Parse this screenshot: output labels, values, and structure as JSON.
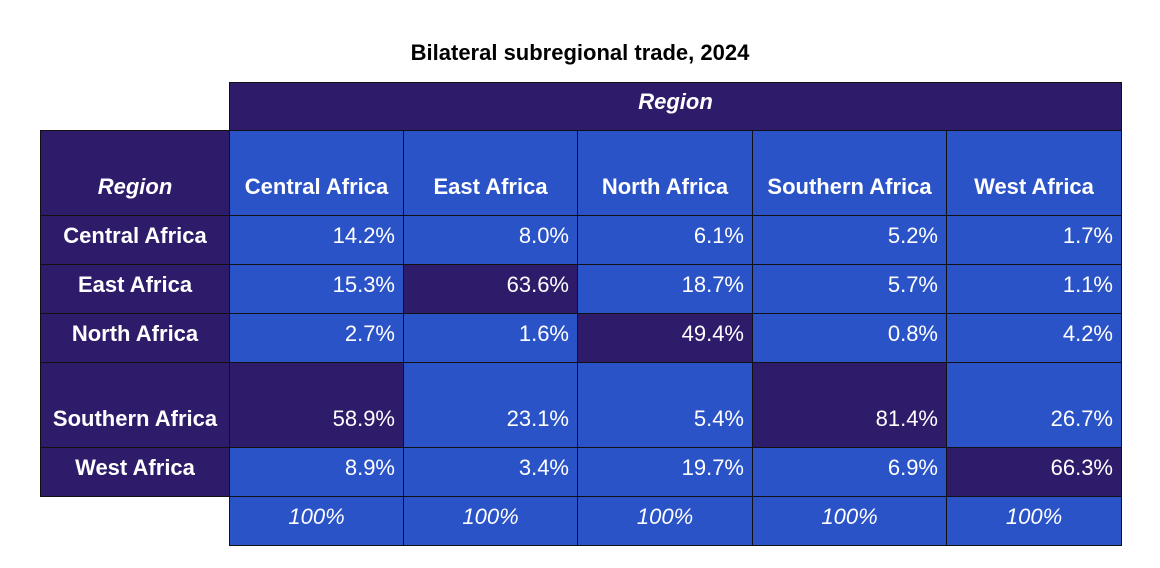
{
  "title": "Bilateral subregional trade, 2024",
  "table": {
    "column_group": "Region",
    "row_header": "Region",
    "columns": [
      "Central Africa",
      "East Africa",
      "North Africa",
      "Southern Africa",
      "West Africa"
    ],
    "rows": [
      {
        "label": "Central Africa",
        "values": [
          "14.2%",
          "8.0%",
          "6.1%",
          "5.2%",
          "1.7%"
        ]
      },
      {
        "label": "East Africa",
        "values": [
          "15.3%",
          "63.6%",
          "18.7%",
          "5.7%",
          "1.1%"
        ]
      },
      {
        "label": "North Africa",
        "values": [
          "2.7%",
          "1.6%",
          "49.4%",
          "0.8%",
          "4.2%"
        ]
      },
      {
        "label": "Southern Africa",
        "values": [
          "58.9%",
          "23.1%",
          "5.4%",
          "81.4%",
          "26.7%"
        ]
      },
      {
        "label": "West Africa",
        "values": [
          "8.9%",
          "3.4%",
          "19.7%",
          "6.9%",
          "66.3%"
        ]
      }
    ],
    "totals": [
      "100%",
      "100%",
      "100%",
      "100%",
      "100%"
    ]
  }
}
